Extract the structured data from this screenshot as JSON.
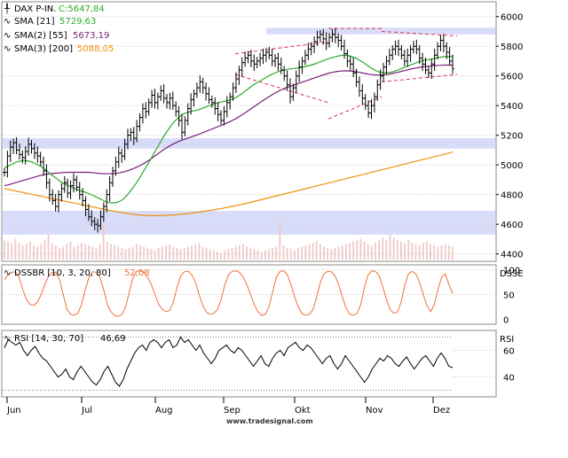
{
  "colors": {
    "price": "#000000",
    "sma21": "#2bab2b",
    "sma55": "#7a1f7a",
    "sma200": "#f0900a",
    "stoch": "#f0703a",
    "rsi": "#000000",
    "channel": "#e03050",
    "band": "#d8dcf8",
    "grid": "#c8c8c8",
    "volume": "#f0c8c8"
  },
  "legend": {
    "price": {
      "name": "DAX P-IN.",
      "value": "C:5647,84"
    },
    "sma21": {
      "name": "SMA [21]",
      "value": "5729,63"
    },
    "sma55": {
      "name": "SMA(2) [55]",
      "value": "5673,19"
    },
    "sma200": {
      "name": "SMA(3) [200]",
      "value": "5088,05"
    },
    "stoch": {
      "name": "DSSBR [10, 3, 20, 80]",
      "value": "52,08"
    },
    "rsi": {
      "name": "RSI [14, 30, 70]",
      "value": "46,69"
    }
  },
  "panel_labels": {
    "stoch": "DSSE",
    "rsi": "RSI"
  },
  "credit": "www.tradesignal.com",
  "chart_data": [
    {
      "type": "ohlc",
      "panel": "price",
      "ylim": [
        4350,
        6100
      ],
      "yticks": [
        "4400",
        "4600",
        "4800",
        "5000",
        "5200",
        "5400",
        "5600",
        "5800",
        "6000"
      ],
      "xticks": [
        "Jun",
        "Jul",
        "Aug",
        "Sep",
        "Okt",
        "Nov",
        "Dez"
      ],
      "closes": [
        4950,
        5060,
        5120,
        5150,
        5100,
        5070,
        5050,
        5090,
        5140,
        5110,
        5080,
        5060,
        5020,
        4960,
        4880,
        4800,
        4760,
        4720,
        4800,
        4840,
        4880,
        4810,
        4860,
        4900,
        4850,
        4800,
        4760,
        4700,
        4650,
        4620,
        4600,
        4590,
        4650,
        4720,
        4800,
        4880,
        4960,
        5020,
        5080,
        5060,
        5140,
        5200,
        5220,
        5180,
        5260,
        5320,
        5380,
        5360,
        5420,
        5470,
        5420,
        5460,
        5500,
        5450,
        5420,
        5450,
        5400,
        5360,
        5300,
        5220,
        5300,
        5380,
        5440,
        5480,
        5520,
        5560,
        5520,
        5480,
        5440,
        5420,
        5380,
        5340,
        5300,
        5360,
        5420,
        5460,
        5520,
        5580,
        5640,
        5690,
        5720,
        5740,
        5700,
        5680,
        5700,
        5720,
        5740,
        5760,
        5740,
        5700,
        5720,
        5680,
        5640,
        5600,
        5540,
        5460,
        5520,
        5600,
        5660,
        5700,
        5740,
        5780,
        5800,
        5830,
        5860,
        5880,
        5850,
        5820,
        5860,
        5880,
        5860,
        5840,
        5800,
        5750,
        5700,
        5680,
        5620,
        5560,
        5500,
        5450,
        5400,
        5350,
        5400,
        5460,
        5540,
        5600,
        5660,
        5700,
        5740,
        5780,
        5800,
        5780,
        5740,
        5700,
        5740,
        5780,
        5800,
        5780,
        5720,
        5680,
        5640,
        5620,
        5680,
        5740,
        5800,
        5840,
        5800,
        5760,
        5700,
        5648
      ],
      "sma21": [
        4980,
        4990,
        5000,
        5010,
        5020,
        5025,
        5030,
        5030,
        5025,
        5020,
        5010,
        5000,
        4990,
        4975,
        4960,
        4940,
        4925,
        4910,
        4895,
        4880,
        4870,
        4860,
        4850,
        4840,
        4832,
        4825,
        4820,
        4812,
        4804,
        4795,
        4785,
        4775,
        4765,
        4755,
        4748,
        4745,
        4744,
        4748,
        4757,
        4770,
        4790,
        4815,
        4842,
        4870,
        4902,
        4936,
        4970,
        5004,
        5040,
        5076,
        5112,
        5148,
        5184,
        5216,
        5246,
        5274,
        5298,
        5318,
        5334,
        5346,
        5354,
        5360,
        5364,
        5368,
        5374,
        5382,
        5390,
        5398,
        5406,
        5412,
        5418,
        5424,
        5428,
        5432,
        5438,
        5446,
        5456,
        5468,
        5482,
        5498,
        5514,
        5530,
        5544,
        5556,
        5568,
        5580,
        5592,
        5604,
        5614,
        5622,
        5630,
        5636,
        5640,
        5644,
        5648,
        5650,
        5652,
        5656,
        5660,
        5664,
        5670,
        5676,
        5682,
        5690,
        5698,
        5706,
        5714,
        5720,
        5726,
        5732,
        5736,
        5740,
        5740,
        5736,
        5730,
        5722,
        5712,
        5700,
        5686,
        5672,
        5658,
        5644,
        5634,
        5626,
        5622,
        5620,
        5622,
        5626,
        5632,
        5640,
        5648,
        5656,
        5664,
        5672,
        5680,
        5688,
        5696,
        5702,
        5706,
        5710,
        5714,
        5718,
        5722,
        5726,
        5730,
        5730,
        5730,
        5730
      ],
      "sma55": [
        4860,
        4865,
        4870,
        4876,
        4882,
        4888,
        4894,
        4900,
        4906,
        4912,
        4918,
        4924,
        4930,
        4934,
        4938,
        4940,
        4942,
        4944,
        4946,
        4948,
        4949,
        4950,
        4950,
        4950,
        4950,
        4950,
        4950,
        4950,
        4950,
        4948,
        4946,
        4944,
        4942,
        4941,
        4940,
        4940,
        4941,
        4943,
        4946,
        4950,
        4955,
        4961,
        4968,
        4976,
        4985,
        4995,
        5006,
        5018,
        5031,
        5045,
        5060,
        5075,
        5090,
        5104,
        5117,
        5129,
        5140,
        5150,
        5159,
        5167,
        5174,
        5181,
        5188,
        5195,
        5202,
        5210,
        5218,
        5226,
        5234,
        5242,
        5250,
        5258,
        5266,
        5274,
        5283,
        5292,
        5302,
        5313,
        5325,
        5338,
        5351,
        5365,
        5379,
        5393,
        5407,
        5421,
        5435,
        5448,
        5461,
        5473,
        5485,
        5496,
        5506,
        5515,
        5523,
        5530,
        5537,
        5544,
        5551,
        5558,
        5565,
        5572,
        5579,
        5586,
        5593,
        5600,
        5607,
        5613,
        5619,
        5624,
        5628,
        5631,
        5633,
        5634,
        5634,
        5633,
        5631,
        5628,
        5624,
        5620,
        5616,
        5612,
        5609,
        5607,
        5606,
        5606,
        5607,
        5609,
        5612,
        5616,
        5621,
        5626,
        5631,
        5636,
        5641,
        5646,
        5650,
        5654,
        5658,
        5661,
        5664,
        5666,
        5668,
        5670,
        5671,
        5672,
        5673,
        5673,
        5673,
        5673
      ],
      "sma200": [
        4840,
        4835,
        4830,
        4825,
        4820,
        4815,
        4810,
        4805,
        4800,
        4795,
        4790,
        4785,
        4780,
        4775,
        4770,
        4765,
        4760,
        4755,
        4750,
        4745,
        4740,
        4735,
        4730,
        4725,
        4720,
        4715,
        4710,
        4705,
        4700,
        4695,
        4690,
        4686,
        4682,
        4678,
        4674,
        4670,
        4667,
        4664,
        4662,
        4660,
        4659,
        4658,
        4658,
        4658,
        4659,
        4660,
        4661,
        4663,
        4665,
        4667,
        4669,
        4672,
        4675,
        4678,
        4681,
        4684,
        4688,
        4692,
        4696,
        4700,
        4704,
        4708,
        4713,
        4718,
        4723,
        4728,
        4733,
        4738,
        4744,
        4750,
        4756,
        4762,
        4768,
        4774,
        4780,
        4786,
        4792,
        4798,
        4804,
        4810,
        4816,
        4822,
        4828,
        4834,
        4840,
        4846,
        4852,
        4858,
        4864,
        4870,
        4876,
        4882,
        4888,
        4894,
        4900,
        4906,
        4912,
        4918,
        4924,
        4930,
        4936,
        4942,
        4948,
        4954,
        4960,
        4966,
        4972,
        4978,
        4984,
        4990,
        4996,
        5002,
        5008,
        5014,
        5020,
        5026,
        5032,
        5038,
        5044,
        5050,
        5056,
        5062,
        5068,
        5074,
        5080,
        5088
      ],
      "channel_upper": [
        [
          5750,
          5830
        ],
        [
          5920,
          5920
        ],
        [
          5900,
          5870
        ]
      ],
      "channel_lower": [
        [
          5610,
          5420
        ],
        [
          5310,
          5460
        ],
        [
          5560,
          5610
        ]
      ]
    },
    {
      "type": "line",
      "panel": "stoch",
      "ylim": [
        -10,
        110
      ],
      "yticks": [
        "0",
        "50",
        "100"
      ],
      "values": [
        80,
        90,
        95,
        96,
        85,
        60,
        40,
        30,
        28,
        35,
        50,
        70,
        88,
        95,
        94,
        80,
        50,
        20,
        10,
        8,
        12,
        30,
        60,
        85,
        96,
        95,
        85,
        60,
        30,
        15,
        8,
        6,
        10,
        25,
        55,
        85,
        97,
        98,
        95,
        85,
        70,
        50,
        30,
        20,
        15,
        18,
        35,
        65,
        88,
        96,
        97,
        90,
        75,
        50,
        28,
        14,
        10,
        12,
        20,
        40,
        70,
        90,
        97,
        98,
        95,
        85,
        70,
        50,
        30,
        15,
        8,
        10,
        25,
        55,
        85,
        97,
        98,
        90,
        70,
        45,
        25,
        12,
        8,
        10,
        20,
        45,
        75,
        92,
        97,
        96,
        88,
        70,
        45,
        22,
        10,
        8,
        12,
        30,
        65,
        90,
        98,
        97,
        88,
        65,
        40,
        20,
        12,
        15,
        35,
        70,
        92,
        97,
        92,
        75,
        50,
        28,
        15,
        30,
        60,
        85,
        92,
        70,
        52
      ]
    },
    {
      "type": "line",
      "panel": "rsi",
      "ylim": [
        25,
        75
      ],
      "yticks": [
        "40",
        "60"
      ],
      "refs": [
        30,
        70
      ],
      "values": [
        62,
        68,
        66,
        64,
        66,
        60,
        56,
        60,
        63,
        58,
        54,
        52,
        48,
        44,
        40,
        42,
        46,
        40,
        38,
        44,
        48,
        44,
        40,
        36,
        34,
        38,
        44,
        48,
        42,
        36,
        33,
        38,
        46,
        52,
        58,
        62,
        64,
        60,
        66,
        68,
        66,
        62,
        66,
        68,
        62,
        64,
        70,
        66,
        68,
        64,
        60,
        64,
        58,
        54,
        50,
        54,
        60,
        62,
        64,
        60,
        58,
        62,
        60,
        56,
        52,
        48,
        52,
        56,
        50,
        48,
        54,
        58,
        60,
        56,
        62,
        64,
        66,
        62,
        60,
        64,
        62,
        58,
        54,
        50,
        54,
        56,
        50,
        46,
        50,
        56,
        52,
        48,
        44,
        40,
        36,
        40,
        46,
        50,
        54,
        52,
        56,
        54,
        50,
        48,
        52,
        55,
        50,
        46,
        50,
        54,
        56,
        52,
        48,
        54,
        58,
        54,
        48,
        47
      ]
    },
    {
      "type": "bar",
      "panel": "volume",
      "values": [
        30,
        28,
        25,
        32,
        26,
        22,
        24,
        28,
        22,
        20,
        24,
        30,
        40,
        25,
        22,
        18,
        20,
        24,
        28,
        20,
        22,
        26,
        24,
        22,
        20,
        18,
        24,
        60,
        28,
        24,
        22,
        20,
        18,
        16,
        18,
        20,
        24,
        22,
        20,
        18,
        16,
        14,
        18,
        20,
        22,
        24,
        20,
        18,
        16,
        18,
        20,
        22,
        24,
        26,
        20,
        18,
        16,
        14,
        12,
        10,
        14,
        16,
        18,
        20,
        22,
        24,
        20,
        18,
        16,
        14,
        12,
        14,
        16,
        18,
        20,
        62,
        22,
        18,
        16,
        14,
        18,
        20,
        22,
        24,
        26,
        28,
        24,
        20,
        18,
        16,
        18,
        20,
        22,
        24,
        26,
        28,
        30,
        32,
        28,
        24,
        22,
        26,
        30,
        34,
        30,
        38,
        34,
        30,
        28,
        26,
        30,
        26,
        24,
        22,
        26,
        28,
        24,
        22,
        20,
        22,
        24,
        22,
        20
      ]
    }
  ]
}
